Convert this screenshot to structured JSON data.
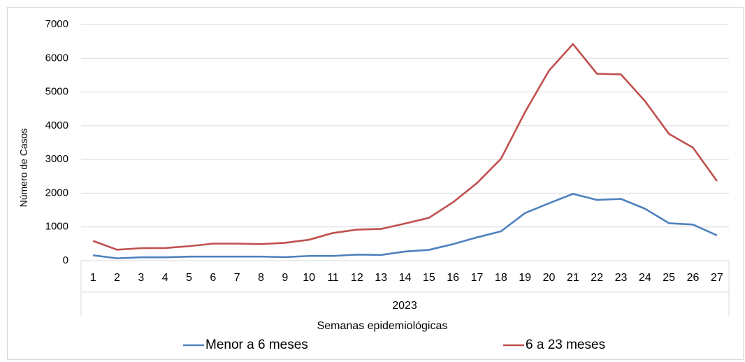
{
  "chart_data": {
    "type": "line",
    "categories": [
      "1",
      "2",
      "3",
      "4",
      "5",
      "6",
      "7",
      "8",
      "9",
      "10",
      "11",
      "12",
      "13",
      "14",
      "15",
      "16",
      "17",
      "18",
      "19",
      "20",
      "21",
      "22",
      "23",
      "24",
      "25",
      "26",
      "27"
    ],
    "x_group": "2023",
    "xlabel": "Semanas epidemiológicas",
    "ylabel": "Número de Casos",
    "ylim": [
      0,
      7000
    ],
    "yticks": [
      0,
      1000,
      2000,
      3000,
      4000,
      5000,
      6000,
      7000
    ],
    "grid": true,
    "legend": "bottom",
    "series": [
      {
        "name": "Menor a 6 meses",
        "color": "#4f81bd",
        "values": [
          160,
          70,
          100,
          100,
          120,
          120,
          120,
          120,
          105,
          140,
          140,
          180,
          170,
          270,
          320,
          490,
          690,
          870,
          1410,
          1700,
          1980,
          1800,
          1830,
          1540,
          1110,
          1070,
          750
        ]
      },
      {
        "name": "6 a 23 meses",
        "color": "#c0504d",
        "values": [
          585,
          325,
          370,
          375,
          430,
          505,
          505,
          490,
          530,
          620,
          820,
          920,
          940,
          1100,
          1270,
          1730,
          2300,
          3020,
          4400,
          5630,
          6420,
          5540,
          5520,
          4730,
          3760,
          3350,
          2360
        ]
      }
    ]
  }
}
